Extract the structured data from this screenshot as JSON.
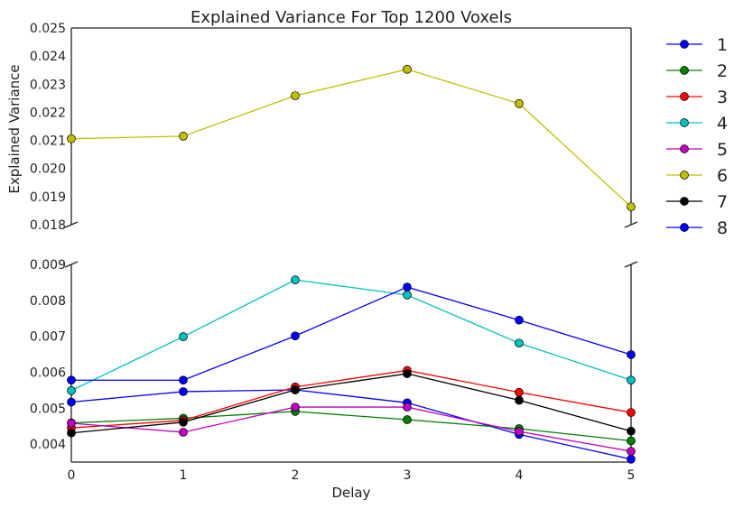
{
  "chart_data": {
    "type": "line",
    "title": "Explained Variance For Top 1200 Voxels",
    "xlabel": "Delay",
    "ylabel": "Explained Variance",
    "x": [
      0,
      1,
      2,
      3,
      4,
      5
    ],
    "xlim": [
      0,
      5
    ],
    "broken_axis": true,
    "panels": [
      {
        "name": "upper",
        "ylim": [
          0.018,
          0.025
        ],
        "yticks": [
          "0.018",
          "0.019",
          "0.020",
          "0.021",
          "0.022",
          "0.023",
          "0.024",
          "0.025"
        ]
      },
      {
        "name": "lower",
        "ylim": [
          0.0035,
          0.009
        ],
        "yticks": [
          "0.004",
          "0.005",
          "0.006",
          "0.007",
          "0.008",
          "0.009"
        ]
      }
    ],
    "xticks": [
      "0",
      "1",
      "2",
      "3",
      "4",
      "5"
    ],
    "grid": false,
    "legend_position": "right, outside plot",
    "series": [
      {
        "name": "1",
        "color": "#0000ff",
        "values": [
          0.00517,
          0.00546,
          0.00551,
          0.00515,
          0.00427,
          0.00358
        ]
      },
      {
        "name": "2",
        "color": "#008000",
        "values": [
          0.00459,
          0.00472,
          0.00491,
          0.00468,
          0.00443,
          0.00409
        ]
      },
      {
        "name": "3",
        "color": "#ff0000",
        "values": [
          0.00445,
          0.00466,
          0.00559,
          0.00605,
          0.00544,
          0.00488
        ]
      },
      {
        "name": "4",
        "color": "#00bfbf",
        "values": [
          0.00549,
          0.00699,
          0.00857,
          0.00815,
          0.00681,
          0.00578
        ]
      },
      {
        "name": "5",
        "color": "#bf00bf",
        "values": [
          0.00458,
          0.00433,
          0.00503,
          0.00503,
          0.00435,
          0.0038
        ]
      },
      {
        "name": "6",
        "color": "#bfbf00",
        "values": [
          0.02106,
          0.02115,
          0.02259,
          0.02353,
          0.02231,
          0.01864
        ]
      },
      {
        "name": "7",
        "color": "#000000",
        "values": [
          0.00431,
          0.00461,
          0.00551,
          0.00596,
          0.00522,
          0.00436
        ]
      },
      {
        "name": "8",
        "color": "#0000ff",
        "values": [
          0.00578,
          0.00578,
          0.00701,
          0.00837,
          0.00745,
          0.00649
        ]
      }
    ]
  }
}
